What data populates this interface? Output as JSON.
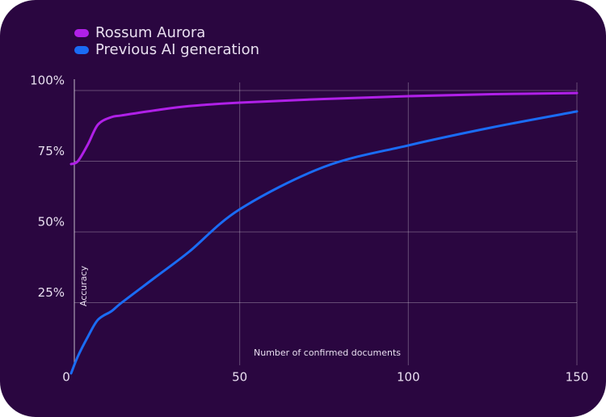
{
  "chart_data": {
    "type": "line",
    "xlabel": "Number of confirmed documents",
    "ylabel": "Accuracy",
    "x": [
      0,
      2,
      5,
      8,
      12,
      15,
      25,
      35,
      50,
      75,
      100,
      125,
      150
    ],
    "series": [
      {
        "name": "Rossum Aurora",
        "color": "#b020e8",
        "values": [
          74,
          75,
          81,
          88,
          90.6,
          91.2,
          93,
          94.5,
          95.7,
          97,
          98,
          98.7,
          99.1
        ]
      },
      {
        "name": "Previous AI generation",
        "color": "#1a6cf5",
        "values": [
          0,
          6,
          13,
          19,
          22,
          25,
          34,
          43,
          58,
          73,
          80.6,
          87,
          92.6
        ]
      }
    ],
    "xlim": [
      0,
      150
    ],
    "ylim": [
      0,
      100
    ],
    "xticks": [
      0,
      50,
      100,
      150
    ],
    "yticks": [
      {
        "value": 25,
        "label": "25%"
      },
      {
        "value": 50,
        "label": "50%"
      },
      {
        "value": 75,
        "label": "75%"
      },
      {
        "value": 100,
        "label": "100%"
      }
    ],
    "grid": true
  }
}
